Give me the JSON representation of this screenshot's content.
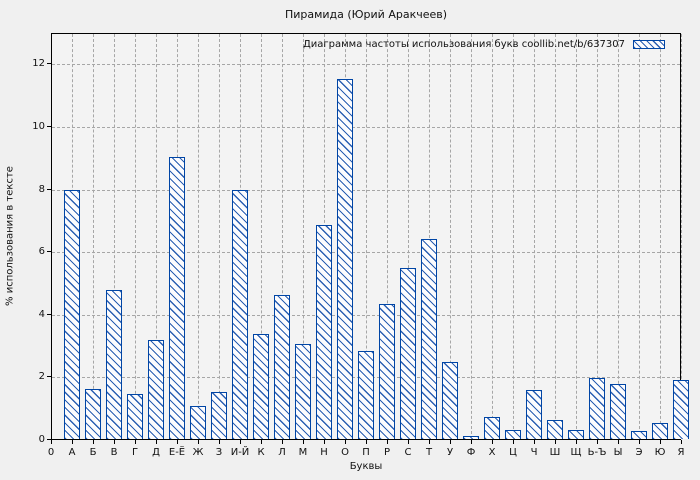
{
  "colors": {
    "bar_border": "#0045a5",
    "bar_hatch": "#2b5fb2",
    "bar_fill": "#fcfcfe",
    "background": "#f0f0f0",
    "plot_background": "#f3f3f3",
    "grid": "#a6a6a6",
    "frame": "#000000",
    "text": "#111111"
  },
  "chart_data": {
    "type": "bar",
    "title": "Пирамида (Юрий Аракчеев)",
    "legend": "Диаграмма частоты использования букв coollib.net/b/637307",
    "legend_position": "top-right",
    "legend_swatch": "blue-diagonal-hatch",
    "xlabel": "Буквы",
    "ylabel": "% использования в тексте",
    "x_origin_label": "0",
    "categories": [
      "А",
      "Б",
      "В",
      "Г",
      "Д",
      "Е-Ё",
      "Ж",
      "З",
      "И-Й",
      "К",
      "Л",
      "М",
      "Н",
      "О",
      "П",
      "Р",
      "С",
      "Т",
      "У",
      "Ф",
      "Х",
      "Ц",
      "Ч",
      "Ш",
      "Щ",
      "Ь-Ъ",
      "Ы",
      "Э",
      "Ю",
      "Я"
    ],
    "values": [
      7.95,
      1.6,
      4.75,
      1.45,
      3.15,
      9.0,
      1.05,
      1.5,
      7.95,
      3.35,
      4.6,
      3.05,
      6.85,
      11.5,
      2.8,
      4.3,
      5.45,
      6.4,
      2.45,
      0.1,
      0.7,
      0.3,
      1.55,
      0.6,
      0.3,
      1.95,
      1.75,
      0.25,
      0.5,
      1.9
    ],
    "yticks": [
      0,
      2,
      4,
      6,
      8,
      10,
      12
    ],
    "ylim": [
      0,
      13
    ],
    "grid": true,
    "hatch": "diagonal-backslash"
  }
}
